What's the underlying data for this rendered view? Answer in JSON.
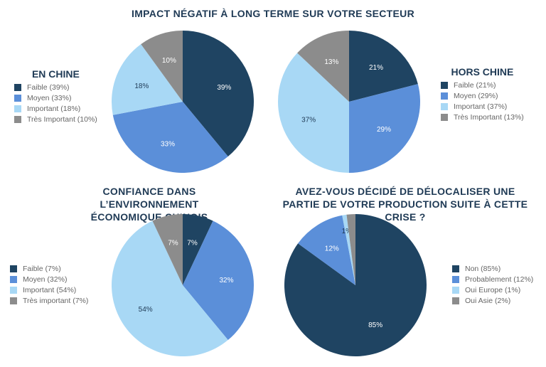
{
  "header": {
    "title": "IMPACT NÉGATIF À LONG TERME SUR VOTRE SECTEUR"
  },
  "colors": {
    "dark": "#1f4462",
    "medium": "#5b8fd9",
    "light": "#a8d8f5",
    "gray": "#8c8c8c"
  },
  "chart_data": [
    {
      "type": "pie",
      "title": "EN CHINE",
      "categories": [
        "Faible",
        "Moyen",
        "Important",
        "Très Important"
      ],
      "legend": [
        "Faible (39%)",
        "Moyen (33%)",
        "Important (18%)",
        "Très Important (10%)"
      ],
      "values": [
        39,
        33,
        18,
        10
      ],
      "labels": [
        "39%",
        "33%",
        "18%",
        "10%"
      ],
      "legend_placement": "left"
    },
    {
      "type": "pie",
      "title": "HORS CHINE",
      "categories": [
        "Faible",
        "Moyen",
        "Important",
        "Très Important"
      ],
      "legend": [
        "Faible (21%)",
        "Moyen (29%)",
        "Important (37%)",
        "Très Important (13%)"
      ],
      "values": [
        21,
        29,
        37,
        13
      ],
      "labels": [
        "21%",
        "29%",
        "37%",
        "13%"
      ],
      "legend_placement": "right"
    },
    {
      "type": "pie",
      "title": "CONFIANCE DANS L’ENVIRONNEMENT ÉCONOMIQUE CHINOIS",
      "categories": [
        "Faible",
        "Moyen",
        "Important",
        "Très important"
      ],
      "legend": [
        "Faible (7%)",
        "Moyen (32%)",
        "Important (54%)",
        "Très important (7%)"
      ],
      "values": [
        7,
        32,
        54,
        7
      ],
      "labels": [
        "7%",
        "32%",
        "54%",
        "7%"
      ],
      "legend_placement": "left"
    },
    {
      "type": "pie",
      "title": "AVEZ-VOUS DÉCIDÉ DE DÉLOCALISER UNE PARTIE DE VOTRE PRODUCTION SUITE À CETTE CRISE ?",
      "categories": [
        "Non",
        "Probablement",
        "Oui Europe",
        "Oui Asie"
      ],
      "legend": [
        "Non (85%)",
        "Probablement (12%)",
        "Oui Europe (1%)",
        "Oui Asie (2%)"
      ],
      "values": [
        85,
        12,
        1,
        2
      ],
      "labels": [
        "85%",
        "12%",
        "1%",
        ""
      ],
      "legend_placement": "right"
    }
  ]
}
